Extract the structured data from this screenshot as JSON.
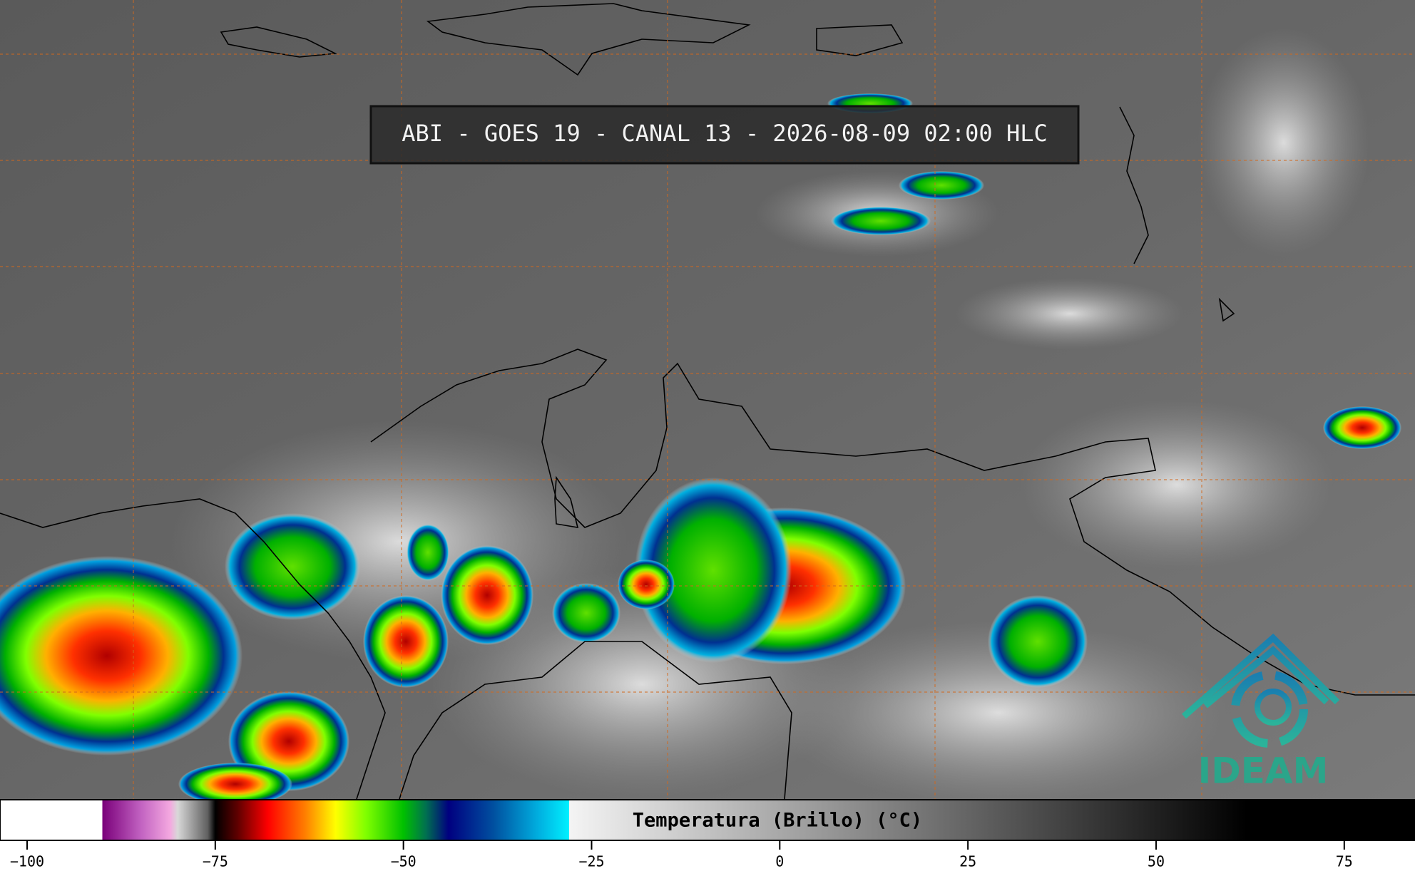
{
  "header": {
    "title": "ABI - GOES 19 - CANAL 13 - 2026-08-09 02:00 HLC"
  },
  "logo": {
    "text": "IDEAM"
  },
  "colorbar": {
    "label": "Temperatura (Brillo) (°C)",
    "lim": [
      -103.6,
      84.4
    ],
    "ticks": [
      {
        "value": -100,
        "label": "−100"
      },
      {
        "value": -75,
        "label": "−75"
      },
      {
        "value": -50,
        "label": "−50"
      },
      {
        "value": -25,
        "label": "−25"
      },
      0,
      25,
      50,
      75
    ],
    "colorscale": [
      {
        "value": -103.6,
        "color": "#ffffff"
      },
      {
        "value": -90,
        "color": "#ffffff"
      },
      {
        "value": -90,
        "color": "#7a007a"
      },
      {
        "value": -85,
        "color": "#c060c0"
      },
      {
        "value": -81,
        "color": "#f4a8e0"
      },
      {
        "value": -80,
        "color": "#d8d8d8"
      },
      {
        "value": -76,
        "color": "#606060"
      },
      {
        "value": -75,
        "color": "#000000"
      },
      {
        "value": -72,
        "color": "#600000"
      },
      {
        "value": -68,
        "color": "#ff0000"
      },
      {
        "value": -63,
        "color": "#ff8000"
      },
      {
        "value": -59,
        "color": "#ffff00"
      },
      {
        "value": -55,
        "color": "#80ff00"
      },
      {
        "value": -50,
        "color": "#00c000"
      },
      {
        "value": -47,
        "color": "#007050"
      },
      {
        "value": -44,
        "color": "#000080"
      },
      {
        "value": -38,
        "color": "#0050a0"
      },
      {
        "value": -32,
        "color": "#00b0e0"
      },
      {
        "value": -28,
        "color": "#00f0ff"
      },
      {
        "value": -28,
        "color": "#f4f4f4"
      },
      {
        "value": 62,
        "color": "#000000"
      },
      {
        "value": 84.4,
        "color": "#000000"
      }
    ]
  }
}
